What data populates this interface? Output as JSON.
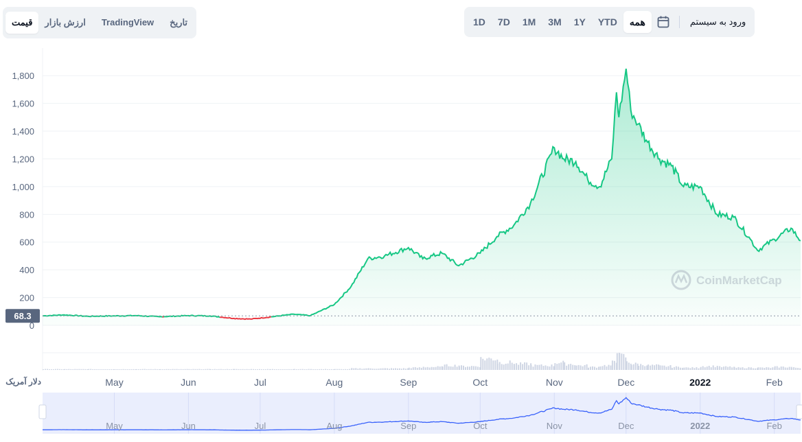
{
  "toolbar_left": {
    "price": "قیمت",
    "market_cap": "ارزش بازار",
    "tradingview": "TradingView",
    "history": "تاریخ"
  },
  "toolbar_right": {
    "login": "ورود به سیستم",
    "calendar_icon": "calendar-icon",
    "ranges": [
      "همه",
      "YTD",
      "1Y",
      "3M",
      "1M",
      "7D",
      "1D"
    ],
    "active_range": "همه"
  },
  "chart_data": {
    "type": "area",
    "ylim": [
      0,
      1900
    ],
    "y_ticks": [
      "0",
      "200",
      "400",
      "600",
      "800",
      "1,000",
      "1,200",
      "1,400",
      "1,600",
      "1,800"
    ],
    "x_ticks": [
      "May",
      "Jun",
      "Jul",
      "Aug",
      "Sep",
      "Oct",
      "Nov",
      "Dec",
      "2022",
      "Feb"
    ],
    "currency_label": "دلار آمریک",
    "open_price_label": "68.3",
    "open_price": 68.3,
    "watermark": "CoinMarketCap",
    "colors": {
      "up": "#16c784",
      "down": "#ea3943",
      "nav": "#3861fb"
    },
    "dates": [
      "2021-04-01",
      "2021-04-10",
      "2021-04-20",
      "2021-05-01",
      "2021-05-10",
      "2021-05-20",
      "2021-06-01",
      "2021-06-10",
      "2021-06-20",
      "2021-06-27",
      "2021-07-05",
      "2021-07-15",
      "2021-07-22",
      "2021-08-01",
      "2021-08-08",
      "2021-08-15",
      "2021-08-22",
      "2021-09-01",
      "2021-09-07",
      "2021-09-15",
      "2021-09-22",
      "2021-10-01",
      "2021-10-08",
      "2021-10-15",
      "2021-10-22",
      "2021-11-01",
      "2021-11-05",
      "2021-11-10",
      "2021-11-15",
      "2021-11-20",
      "2021-11-25",
      "2021-11-27",
      "2021-11-28",
      "2021-12-01",
      "2021-12-03",
      "2021-12-06",
      "2021-12-10",
      "2021-12-15",
      "2021-12-20",
      "2021-12-25",
      "2022-01-01",
      "2022-01-08",
      "2022-01-15",
      "2022-01-22",
      "2022-01-25",
      "2022-02-01",
      "2022-02-08",
      "2022-02-12"
    ],
    "values": [
      68.3,
      75,
      65,
      68,
      70,
      62,
      70,
      68,
      50,
      45,
      60,
      80,
      70,
      150,
      280,
      480,
      500,
      560,
      480,
      520,
      430,
      520,
      640,
      720,
      880,
      1280,
      1200,
      1180,
      1050,
      1000,
      1200,
      1680,
      1500,
      1850,
      1550,
      1450,
      1320,
      1200,
      1150,
      1000,
      1000,
      800,
      780,
      620,
      540,
      620,
      700,
      610
    ],
    "volume": [
      1,
      1,
      1,
      1,
      1,
      1,
      1,
      1,
      1,
      1,
      1,
      1,
      1,
      1,
      2,
      2,
      2,
      3,
      4,
      6,
      5,
      15,
      10,
      8,
      6,
      10,
      8,
      6,
      4,
      6,
      10,
      30,
      18,
      10,
      8,
      7,
      6,
      5,
      4,
      3,
      5,
      4,
      3,
      3,
      3,
      4,
      3,
      3
    ]
  }
}
